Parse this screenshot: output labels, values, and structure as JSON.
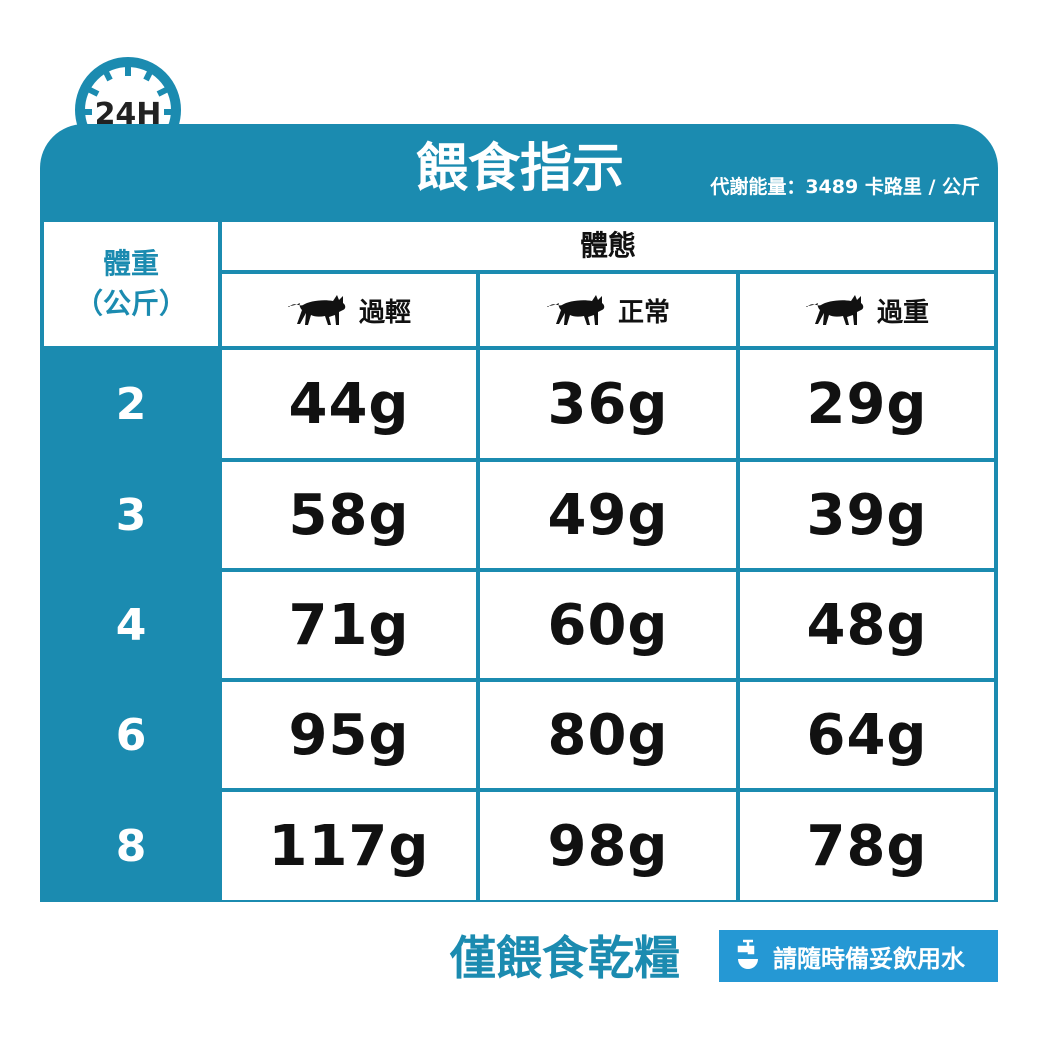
{
  "badge": "24H",
  "title": "餵食指示",
  "energy": "代謝能量：3489 卡路里 / 公斤",
  "header": {
    "weight": [
      "體重",
      "（公斤）"
    ],
    "body_condition": "體態",
    "columns": [
      "過輕",
      "正常",
      "過重"
    ]
  },
  "rows": [
    {
      "weight": "2",
      "values": [
        "44g",
        "36g",
        "29g"
      ]
    },
    {
      "weight": "3",
      "values": [
        "58g",
        "49g",
        "39g"
      ]
    },
    {
      "weight": "4",
      "values": [
        "71g",
        "60g",
        "48g"
      ]
    },
    {
      "weight": "6",
      "values": [
        "95g",
        "80g",
        "64g"
      ]
    },
    {
      "weight": "8",
      "values": [
        "117g",
        "98g",
        "78g"
      ]
    }
  ],
  "footer": {
    "dry_only": "僅餵食乾糧",
    "water": "請隨時備妥飲用水"
  },
  "colors": {
    "teal": "#1b8bb0",
    "blue": "#2598d4"
  },
  "icons": [
    "clock-24h-icon",
    "cat-icon",
    "water-tap-icon"
  ]
}
